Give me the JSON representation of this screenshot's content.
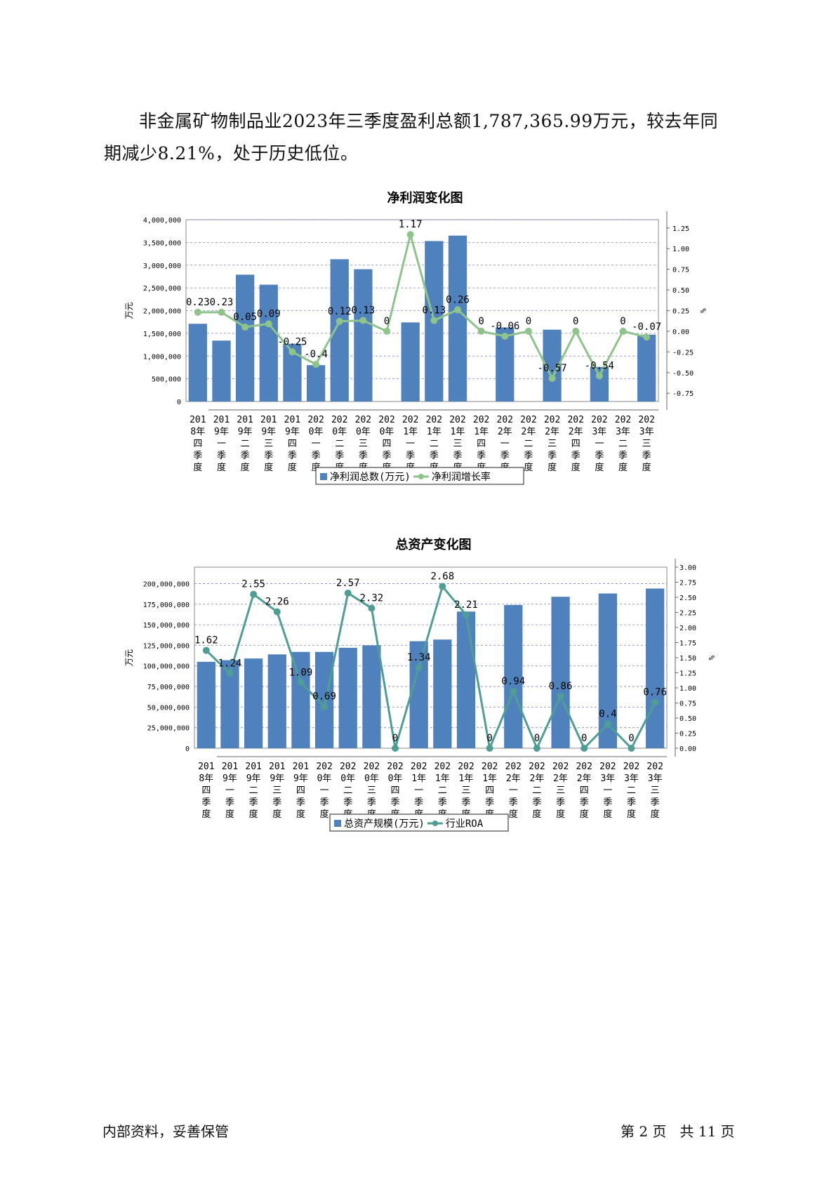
{
  "paragraph": "非金属矿物制品业2023年三季度盈利总额1,787,365.99万元，较去年同期减少8.21%，处于历史低位。",
  "footer": {
    "left": "内部资料，妥善保管",
    "right": "第 2 页   共 11 页"
  },
  "chart_data": [
    {
      "type": "bar+line",
      "title": "净利润变化图",
      "ylabel_left": "万元",
      "ylabel_right": "%",
      "categories": [
        "2018年四季度",
        "2019年一季度",
        "2019年二季度",
        "2019年三季度",
        "2019年四季度",
        "2020年一季度",
        "2020年二季度",
        "2020年三季度",
        "2020年四季度",
        "2021年一季度",
        "2021年二季度",
        "2021年三季度",
        "2021年四季度",
        "2022年一季度",
        "2022年二季度",
        "2022年三季度",
        "2022年四季度",
        "2023年一季度",
        "2023年二季度",
        "2023年三季度"
      ],
      "ylim_left": [
        0,
        4000000
      ],
      "yticks_left": [
        "0",
        "500,000",
        "1,000,000",
        "1,500,000",
        "2,000,000",
        "2,500,000",
        "3,000,000",
        "3,500,000",
        "4,000,000"
      ],
      "ylim_right": [
        -0.85,
        1.35
      ],
      "yticks_right": [
        "-0.75",
        "-0.50",
        "-0.25",
        "0.00",
        "0.25",
        "0.50",
        "0.75",
        "1.00",
        "1.25"
      ],
      "series": [
        {
          "name": "净利润总数(万元)",
          "kind": "bar",
          "color": "#4f81bd",
          "values": [
            1710000,
            1340000,
            2790000,
            2570000,
            1270000,
            800000,
            3130000,
            2910000,
            0,
            1740000,
            3530000,
            3650000,
            0,
            1630000,
            0,
            1580000,
            0,
            760000,
            0,
            1470000
          ]
        },
        {
          "name": "净利润增长率",
          "kind": "line",
          "color": "#8ec38a",
          "values": [
            0.23,
            0.23,
            0.05,
            0.09,
            -0.25,
            -0.4,
            0.12,
            0.13,
            0,
            1.17,
            0.13,
            0.26,
            0,
            -0.06,
            0,
            -0.57,
            0,
            -0.54,
            0,
            -0.07
          ],
          "labels": [
            "0.23",
            "0.23",
            "0.05",
            "0.09",
            "-0.25",
            "-0.4",
            "0.12",
            "0.13",
            "0",
            "1.17",
            "0.13",
            "0.26",
            "0",
            "-0.06",
            "0",
            "-0.57",
            "0",
            "-0.54",
            "0",
            "-0.07"
          ]
        }
      ],
      "grid": true,
      "legend": "bottom"
    },
    {
      "type": "bar+line",
      "title": "总资产变化图",
      "ylabel_left": "万元",
      "ylabel_right": "%",
      "categories": [
        "2018年四季度",
        "2019年一季度",
        "2019年二季度",
        "2019年三季度",
        "2019年四季度",
        "2020年一季度",
        "2020年二季度",
        "2020年三季度",
        "2020年四季度",
        "2021年一季度",
        "2021年二季度",
        "2021年三季度",
        "2021年四季度",
        "2022年一季度",
        "2022年二季度",
        "2022年三季度",
        "2022年四季度",
        "2023年一季度",
        "2023年二季度",
        "2023年三季度"
      ],
      "ylim_left": [
        0,
        220000000
      ],
      "yticks_left": [
        "0",
        "25,000,000",
        "50,000,000",
        "75,000,000",
        "100,000,000",
        "125,000,000",
        "150,000,000",
        "175,000,000",
        "200,000,000"
      ],
      "ylim_right": [
        0,
        3.0
      ],
      "yticks_right": [
        "0.00",
        "0.25",
        "0.50",
        "0.75",
        "1.00",
        "1.25",
        "1.50",
        "1.75",
        "2.00",
        "2.25",
        "2.50",
        "2.75",
        "3.00"
      ],
      "series": [
        {
          "name": "总资产规模(万元)",
          "kind": "bar",
          "color": "#4f81bd",
          "values": [
            105000000,
            107000000,
            109000000,
            114000000,
            117000000,
            117000000,
            122000000,
            125000000,
            0,
            130000000,
            132000000,
            166000000,
            0,
            174000000,
            0,
            184000000,
            0,
            188000000,
            0,
            194000000
          ]
        },
        {
          "name": "行业ROA",
          "kind": "line",
          "color": "#4f9e96",
          "values": [
            1.62,
            1.24,
            2.55,
            2.26,
            1.09,
            0.69,
            2.57,
            2.32,
            0,
            1.34,
            2.68,
            2.21,
            0,
            0.94,
            0,
            0.86,
            0,
            0.4,
            0,
            0.76
          ],
          "labels": [
            "1.62",
            "1.24",
            "2.55",
            "2.26",
            "1.09",
            "0.69",
            "2.57",
            "2.32",
            "0",
            "1.34",
            "2.68",
            "2.21",
            "0",
            "0.94",
            "0",
            "0.86",
            "0",
            "0.4",
            "0",
            "0.76"
          ]
        }
      ],
      "grid": true,
      "legend": "bottom"
    }
  ]
}
